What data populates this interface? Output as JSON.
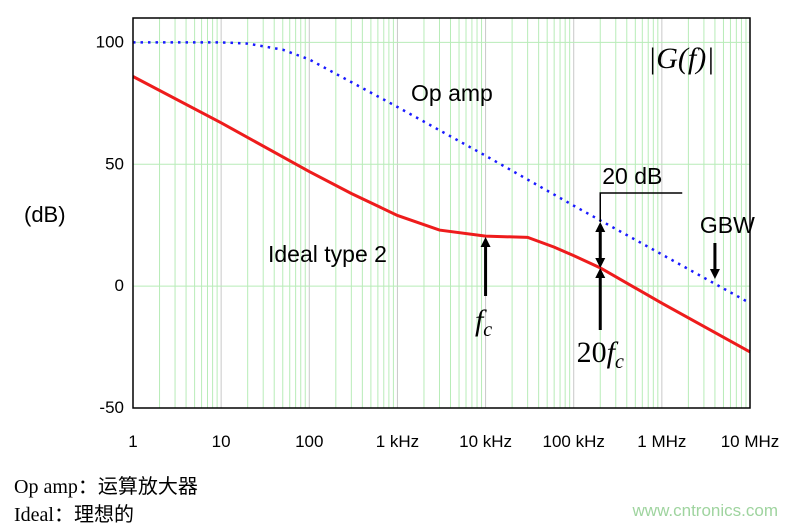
{
  "chart_data": {
    "type": "line",
    "title": "",
    "magnitude_label": "|G(f)|",
    "xlabel": "",
    "ylabel": "(dB)",
    "xscale": "log",
    "xlim": [
      1,
      10000000
    ],
    "ylim": [
      -50,
      110
    ],
    "grid": true,
    "x_ticks": [
      1,
      10,
      100,
      1000,
      10000,
      100000,
      1000000,
      10000000
    ],
    "x_tick_labels": [
      "1",
      "10",
      "100",
      "1 kHz",
      "10 kHz",
      "100 kHz",
      "1 MHz",
      "10 MHz"
    ],
    "y_ticks": [
      100,
      50,
      0,
      -50
    ],
    "y_tick_labels": [
      "100",
      "50",
      "0",
      "-50"
    ],
    "series": [
      {
        "name": "Op amp",
        "color": "#1a1aff",
        "style": "dotted",
        "x": [
          1,
          10,
          20,
          50,
          100,
          1000,
          10000,
          100000,
          1000000,
          10000000
        ],
        "y": [
          100,
          100,
          99.5,
          97,
          93,
          73.5,
          53.5,
          33,
          13,
          -7
        ]
      },
      {
        "name": "Ideal type 2",
        "color": "#ee1c1c",
        "style": "solid",
        "x": [
          1,
          10,
          100,
          300,
          1000,
          3000,
          10000,
          30000,
          60000,
          100000,
          200000,
          1000000,
          10000000
        ],
        "y": [
          86,
          67,
          47,
          38,
          29,
          23,
          20.5,
          20,
          16,
          12.5,
          7.5,
          -7,
          -27
        ]
      }
    ],
    "annotations": [
      {
        "text": "f",
        "sub": "c",
        "x": 10000
      },
      {
        "text": "20f",
        "sub": "c",
        "x": 200000
      },
      {
        "text": "20 dB",
        "x": 200000
      },
      {
        "text": "GBW",
        "x": 4000000
      }
    ]
  },
  "captions": [
    "Op amp：运算放大器",
    "Ideal：理想的"
  ],
  "watermark": "www.cntronics.com"
}
